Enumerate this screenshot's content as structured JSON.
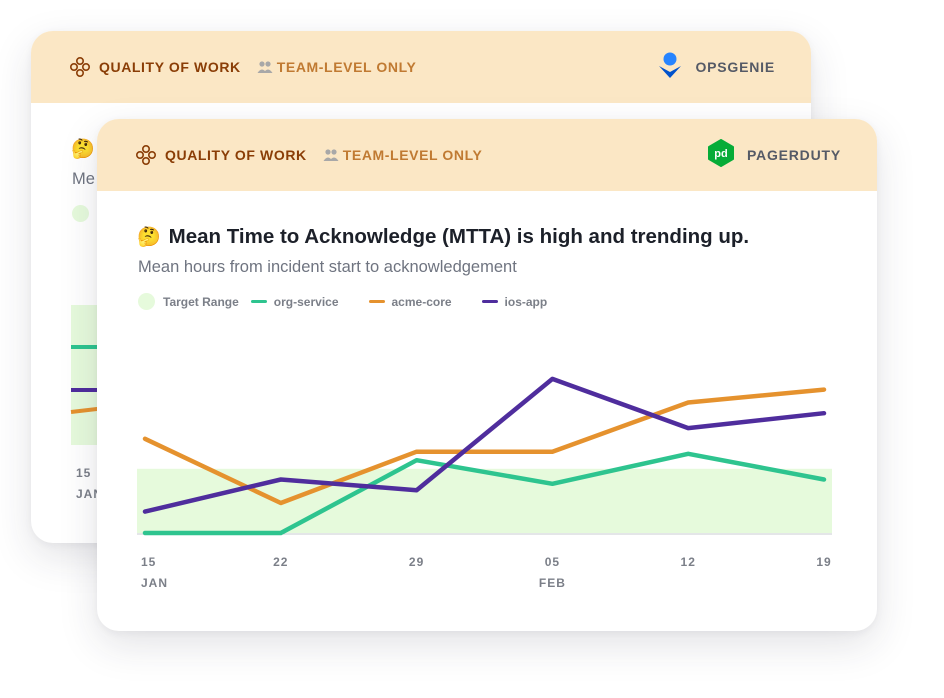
{
  "back_card": {
    "header": {
      "quality_label": "QUALITY OF WORK",
      "team_label": "TEAM-LEVEL ONLY",
      "source_label": "OPSGENIE"
    },
    "subtitle_partial": "Me",
    "x_tick_partial": "15",
    "x_sub_partial": "JAN"
  },
  "front_card": {
    "header": {
      "quality_label": "QUALITY OF WORK",
      "team_label": "TEAM-LEVEL ONLY",
      "source_label": "PAGERDUTY",
      "source_logo_text": "pd"
    },
    "title_emoji": "🤔",
    "title": "Mean Time to Acknowledge (MTTA) is high and trending up.",
    "subtitle": "Mean hours from incident start to acknowledgement"
  },
  "colors": {
    "header_bg": "#fbe7c5",
    "quality": "#8a3d06",
    "team": "#c07a32",
    "target_range": "#e6fadc",
    "org_service": "#2ec48f",
    "acme_core": "#e5922e",
    "ios_app": "#4f2d9d",
    "pagerduty_green": "#06ac38",
    "opsgenie_blue": "#2684ff"
  },
  "chart_data": {
    "type": "line",
    "title": "Mean Time to Acknowledge (MTTA) is high and trending up.",
    "subtitle": "Mean hours from incident start to acknowledgement",
    "x": [
      "15",
      "22",
      "29",
      "05",
      "12",
      "19"
    ],
    "x_sublabels": [
      "JAN",
      "",
      "",
      "FEB",
      "",
      ""
    ],
    "ylim": [
      0,
      10
    ],
    "target_range": {
      "label": "Target Range",
      "from": 0,
      "to": 3
    },
    "series": [
      {
        "name": "org-service",
        "color": "#2ec48f",
        "values": [
          0,
          0,
          3.4,
          2.3,
          3.7,
          2.5
        ]
      },
      {
        "name": "acme-core",
        "color": "#e5922e",
        "values": [
          4.4,
          1.4,
          3.8,
          3.8,
          6.1,
          6.7
        ]
      },
      {
        "name": "ios-app",
        "color": "#4f2d9d",
        "values": [
          1.0,
          2.5,
          2.0,
          7.2,
          4.9,
          5.6
        ]
      }
    ],
    "legend_position": "top-left",
    "grid": false
  }
}
